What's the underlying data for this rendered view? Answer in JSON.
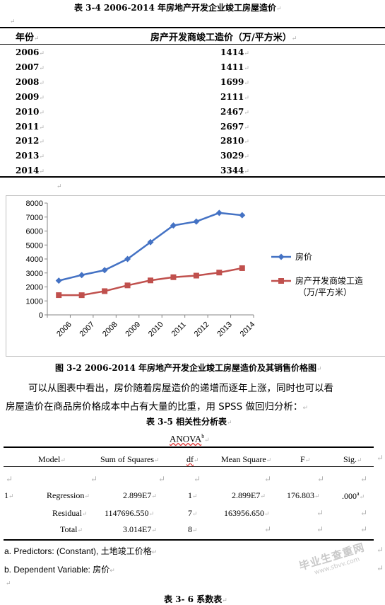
{
  "caption_34": "表 3-4 2006-2014 年房地产开发企业竣工房屋造价",
  "table34": {
    "headers": [
      "年份",
      "房产开发商竣工造价（万/平方米）"
    ],
    "rows": [
      {
        "year": "2006",
        "value": "1414"
      },
      {
        "year": "2007",
        "value": "1411"
      },
      {
        "year": "2008",
        "value": "1699"
      },
      {
        "year": "2009",
        "value": "2111"
      },
      {
        "year": "2010",
        "value": "2467"
      },
      {
        "year": "2011",
        "value": "2697"
      },
      {
        "year": "2012",
        "value": "2810"
      },
      {
        "year": "2013",
        "value": "3029"
      },
      {
        "year": "2014",
        "value": "3344"
      }
    ]
  },
  "chart_data": {
    "type": "line",
    "categories": [
      "2006",
      "2007",
      "2008",
      "2009",
      "2010",
      "2011",
      "2012",
      "2013",
      "2014"
    ],
    "ylim": [
      0,
      8000
    ],
    "yticks": [
      "0",
      "1000",
      "2000",
      "3000",
      "4000",
      "5000",
      "6000",
      "7000",
      "8000"
    ],
    "grid": false,
    "legend": "right",
    "series": [
      {
        "name": "房价",
        "color": "#4472c4",
        "marker": "diamond",
        "values": [
          2450,
          2850,
          3200,
          4000,
          5200,
          6400,
          6680,
          7300,
          7130
        ]
      },
      {
        "name": "房产开发商竣工造价（万/平方米）",
        "legend_lines": [
          "房产开发商竣工造",
          "（万/平方米）"
        ],
        "color": "#c0504d",
        "marker": "square",
        "values": [
          1414,
          1411,
          1699,
          2111,
          2467,
          2697,
          2810,
          3029,
          3344
        ]
      }
    ]
  },
  "figure_caption": "图 3-2  2006-2014 年房地产开发企业竣工房屋造价及其销售价格图",
  "paragraph": {
    "line1": "可以从图表中看出，房价随着房屋造价的递增而逐年上涨，同时也可以看",
    "line2": "房屋造价在商品房价格成本中占有大量的比重，用 SPSS 做回归分析："
  },
  "caption_35": "表 3-5 相关性分析表",
  "anova": {
    "title": "ANOVA",
    "title_sup": "b",
    "headers": {
      "model": "Model",
      "ss": "Sum of Squares",
      "df": "df",
      "ms": "Mean Square",
      "f": "F",
      "sig": "Sig."
    },
    "model_no": "1",
    "rows": [
      {
        "label": "Regression",
        "ss": "2.899E7",
        "df": "1",
        "ms": "2.899E7",
        "f": "176.803",
        "sig": ".000",
        "sig_sup": "a"
      },
      {
        "label": "Residual",
        "ss": "1147696.550",
        "df": "7",
        "ms": "163956.650",
        "f": "",
        "sig": ""
      },
      {
        "label": "Total",
        "ss": "3.014E7",
        "df": "8",
        "ms": "",
        "f": "",
        "sig": ""
      }
    ],
    "note_a": "a. Predictors: (Constant), 土地竣工价格",
    "note_b": "b. Dependent Variable:   房价"
  },
  "caption_36": "表 3- 6 系数表",
  "watermark": {
    "line1": "毕业生查重网",
    "line2": "www.sbvv.com"
  }
}
